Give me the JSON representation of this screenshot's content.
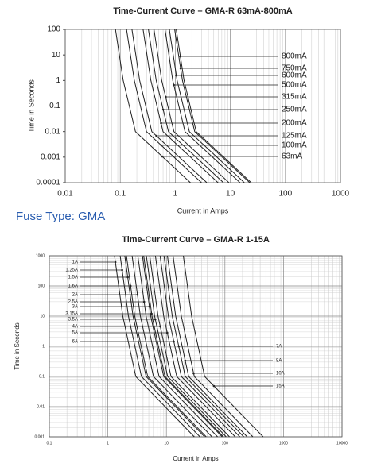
{
  "chart_data": [
    {
      "type": "line",
      "title": "Time-Current Curve – GMA-R 63mA-800mA",
      "xlabel": "Current in Amps",
      "ylabel": "Time in Seconds",
      "xscale": "log",
      "yscale": "log",
      "grid_x": true,
      "grid_y": false,
      "xlim": [
        0.01,
        1000
      ],
      "ylim": [
        0.0001,
        100
      ],
      "xticks": [
        0.01,
        0.1,
        1,
        10,
        100,
        1000
      ],
      "yticks": [
        0.0001,
        0.001,
        0.01,
        0.1,
        1,
        10,
        100
      ],
      "series": [
        {
          "name": "800mA",
          "color": "#222222",
          "x": [
            1.04,
            1.44,
            2.4,
            24
          ],
          "values": [
            100,
            1,
            0.01,
            0.0001
          ]
        },
        {
          "name": "750mA",
          "color": "#222222",
          "x": [
            0.975,
            1.35,
            2.25,
            22.5
          ],
          "values": [
            100,
            1,
            0.01,
            0.0001
          ]
        },
        {
          "name": "600mA",
          "color": "#222222",
          "x": [
            0.78,
            1.08,
            1.8,
            18
          ],
          "values": [
            100,
            1,
            0.01,
            0.0001
          ]
        },
        {
          "name": "500mA",
          "color": "#222222",
          "x": [
            0.65,
            0.9,
            1.5,
            15
          ],
          "values": [
            100,
            1,
            0.01,
            0.0001
          ]
        },
        {
          "name": "315mA",
          "color": "#222222",
          "x": [
            0.41,
            0.567,
            0.945,
            9.45
          ],
          "values": [
            100,
            1,
            0.01,
            0.0001
          ]
        },
        {
          "name": "250mA",
          "color": "#222222",
          "x": [
            0.325,
            0.45,
            0.75,
            7.5
          ],
          "values": [
            100,
            1,
            0.01,
            0.0001
          ]
        },
        {
          "name": "200mA",
          "color": "#222222",
          "x": [
            0.26,
            0.36,
            0.6,
            6
          ],
          "values": [
            100,
            1,
            0.01,
            0.0001
          ]
        },
        {
          "name": "125mA",
          "color": "#222222",
          "x": [
            0.163,
            0.225,
            0.375,
            3.75
          ],
          "values": [
            100,
            1,
            0.01,
            0.0001
          ]
        },
        {
          "name": "100mA",
          "color": "#222222",
          "x": [
            0.13,
            0.18,
            0.3,
            3
          ],
          "values": [
            100,
            1,
            0.01,
            0.0001
          ]
        },
        {
          "name": "63mA",
          "color": "#222222",
          "x": [
            0.082,
            0.113,
            0.189,
            1.89
          ],
          "values": [
            100,
            1,
            0.01,
            0.0001
          ]
        }
      ]
    },
    {
      "type": "line",
      "title": "Time-Current Curve – GMA-R 1-15A",
      "xlabel": "Current in Amps",
      "ylabel": "Time in Seconds",
      "xscale": "log",
      "yscale": "log",
      "grid_x": true,
      "grid_y": true,
      "xlim": [
        0.1,
        10000
      ],
      "ylim": [
        0.001,
        1000
      ],
      "xticks": [
        0.1,
        1,
        10,
        100,
        1000,
        10000
      ],
      "yticks": [
        0.001,
        0.01,
        0.1,
        1,
        10,
        100,
        1000
      ],
      "series": [
        {
          "name": "1A",
          "color": "#222222",
          "x": [
            1.3,
            1.8,
            3,
            30
          ],
          "values": [
            1000,
            10,
            0.1,
            0.001
          ]
        },
        {
          "name": "1.25A",
          "color": "#222222",
          "x": [
            1.625,
            2.25,
            3.75,
            37.5
          ],
          "values": [
            1000,
            10,
            0.1,
            0.001
          ]
        },
        {
          "name": "1.5A",
          "color": "#222222",
          "x": [
            1.95,
            2.7,
            4.5,
            45
          ],
          "values": [
            1000,
            10,
            0.1,
            0.001
          ]
        },
        {
          "name": "1.6A",
          "color": "#222222",
          "x": [
            2.08,
            2.88,
            4.8,
            48
          ],
          "values": [
            1000,
            10,
            0.1,
            0.001
          ]
        },
        {
          "name": "2A",
          "color": "#222222",
          "x": [
            2.6,
            3.6,
            6,
            60
          ],
          "values": [
            1000,
            10,
            0.1,
            0.001
          ]
        },
        {
          "name": "2.5A",
          "color": "#222222",
          "x": [
            3.25,
            4.5,
            7.5,
            75
          ],
          "values": [
            1000,
            10,
            0.1,
            0.001
          ]
        },
        {
          "name": "3A",
          "color": "#222222",
          "x": [
            3.9,
            5.4,
            9,
            90
          ],
          "values": [
            1000,
            10,
            0.1,
            0.001
          ]
        },
        {
          "name": "3.15A",
          "color": "#222222",
          "x": [
            4.095,
            5.67,
            9.45,
            94.5
          ],
          "values": [
            1000,
            10,
            0.1,
            0.001
          ]
        },
        {
          "name": "3.5A",
          "color": "#222222",
          "x": [
            4.55,
            6.3,
            10.5,
            105
          ],
          "values": [
            1000,
            10,
            0.1,
            0.001
          ]
        },
        {
          "name": "4A",
          "color": "#222222",
          "x": [
            5.2,
            7.2,
            12,
            120
          ],
          "values": [
            1000,
            10,
            0.1,
            0.001
          ]
        },
        {
          "name": "5A",
          "color": "#222222",
          "x": [
            6.5,
            9,
            15,
            150
          ],
          "values": [
            1000,
            10,
            0.1,
            0.001
          ]
        },
        {
          "name": "6A",
          "color": "#222222",
          "x": [
            7.8,
            10.8,
            18,
            180
          ],
          "values": [
            1000,
            10,
            0.1,
            0.001
          ]
        },
        {
          "name": "7A",
          "color": "#222222",
          "x": [
            9.1,
            12.6,
            21,
            210
          ],
          "values": [
            1000,
            10,
            0.1,
            0.001
          ]
        },
        {
          "name": "8A",
          "color": "#222222",
          "x": [
            10.4,
            14.4,
            24,
            240
          ],
          "values": [
            1000,
            10,
            0.1,
            0.001
          ]
        },
        {
          "name": "10A",
          "color": "#222222",
          "x": [
            13,
            18,
            30,
            300
          ],
          "values": [
            1000,
            10,
            0.1,
            0.001
          ]
        },
        {
          "name": "15A",
          "color": "#222222",
          "x": [
            19.5,
            27,
            45,
            450
          ],
          "values": [
            1000,
            10,
            0.1,
            0.001
          ]
        }
      ]
    }
  ],
  "heading": "Fuse Type: GMA"
}
